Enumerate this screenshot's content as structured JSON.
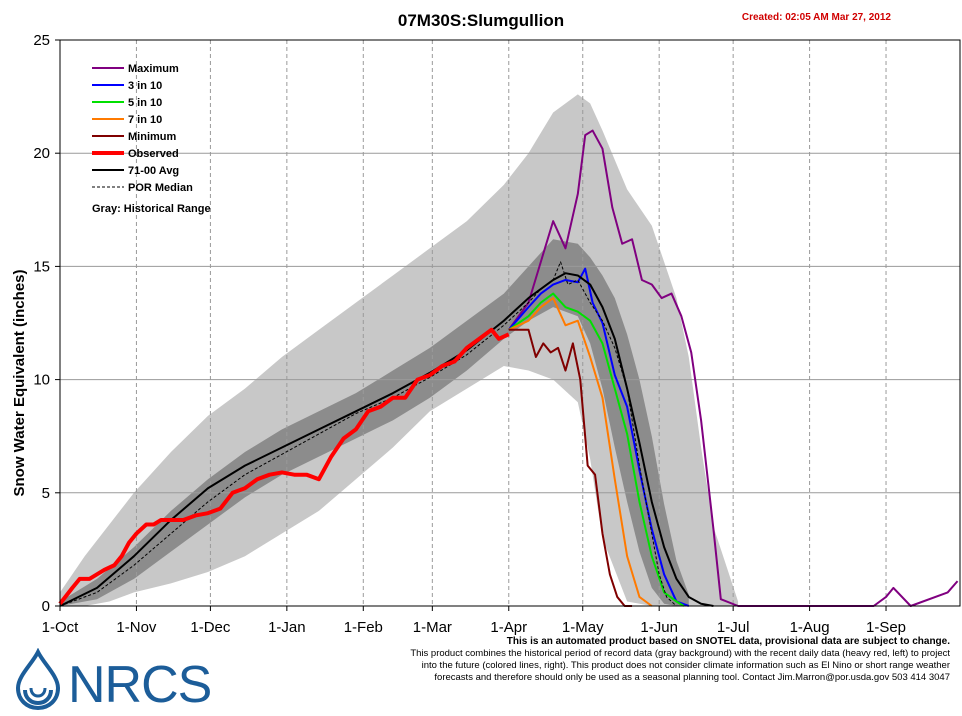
{
  "header": {
    "created": "Created: 02:05 AM Mar 27, 2012"
  },
  "logo": {
    "text": "NRCS",
    "color": "#1c5d99"
  },
  "disclaimer": {
    "headline": "This is an automated product based on SNOTEL data, provisional data are subject to change.",
    "line1": "This product combines the historical period of record data (gray background) with the recent daily data (heavy red, left) to project",
    "line2": "into the future (colored lines, right). This product does not consider climate information such as El Nino or short range weather",
    "line3": "forecasts and therefore should only be used as a seasonal planning tool. Contact Jim.Marron@por.usda.gov 503 414 3047"
  },
  "chart_data": {
    "type": "line",
    "title": "07M30S:Slumgullion",
    "xlabel": "",
    "ylabel": "Snow Water Equivalent (inches)",
    "ylim": [
      0,
      25
    ],
    "yticks": [
      0,
      5,
      10,
      15,
      20,
      25
    ],
    "x_unit": "days since 1-Oct",
    "xlim": [
      0,
      365
    ],
    "xticks": [
      {
        "label": "1-Oct",
        "day": 0
      },
      {
        "label": "1-Nov",
        "day": 31
      },
      {
        "label": "1-Dec",
        "day": 61
      },
      {
        "label": "1-Jan",
        "day": 92
      },
      {
        "label": "1-Feb",
        "day": 123
      },
      {
        "label": "1-Mar",
        "day": 151
      },
      {
        "label": "1-Apr",
        "day": 182
      },
      {
        "label": "1-May",
        "day": 212
      },
      {
        "label": "1-Jun",
        "day": 243
      },
      {
        "label": "1-Jul",
        "day": 273
      },
      {
        "label": "1-Aug",
        "day": 304
      },
      {
        "label": "1-Sep",
        "day": 335
      }
    ],
    "grid": true,
    "legend_position": "top-left",
    "legend_note": "Gray: Historical Range",
    "bands": [
      {
        "name": "Historical Range",
        "color": "#c8c8c8",
        "x": [
          0,
          10,
          20,
          30,
          45,
          60,
          75,
          90,
          105,
          120,
          135,
          150,
          165,
          180,
          190,
          200,
          210,
          215,
          220,
          230,
          240,
          250,
          255,
          260,
          265,
          275
        ],
        "upper": [
          0.6,
          2.2,
          3.6,
          5.0,
          6.8,
          8.4,
          9.6,
          11.0,
          12.2,
          13.4,
          14.6,
          15.8,
          17.0,
          18.6,
          20.0,
          21.8,
          22.6,
          22.2,
          21.0,
          18.4,
          16.8,
          13.6,
          11.0,
          7.0,
          3.5,
          0.2
        ],
        "lower": [
          0,
          0,
          0.2,
          0.6,
          1.0,
          1.5,
          2.2,
          3.2,
          4.2,
          5.6,
          7.0,
          8.6,
          9.6,
          10.6,
          10.4,
          10.0,
          9.0,
          6.5,
          3.0,
          0.2,
          0,
          0,
          0,
          0,
          0,
          0
        ]
      },
      {
        "name": "Middle Range",
        "color": "#8c8c8c",
        "x": [
          0,
          15,
          30,
          45,
          60,
          75,
          90,
          105,
          120,
          135,
          150,
          165,
          180,
          190,
          200,
          210,
          215,
          220,
          225,
          230,
          235,
          240,
          245,
          250,
          255
        ],
        "upper": [
          0.2,
          1.2,
          2.6,
          4.2,
          5.6,
          6.8,
          7.8,
          8.6,
          9.4,
          10.4,
          11.4,
          12.6,
          13.8,
          15.0,
          16.2,
          16.0,
          15.4,
          14.6,
          13.6,
          12.0,
          10.0,
          7.5,
          4.5,
          2.0,
          0.5
        ],
        "lower": [
          0,
          0.3,
          1.2,
          2.4,
          3.6,
          4.8,
          5.8,
          6.6,
          7.4,
          8.2,
          9.2,
          10.4,
          11.8,
          12.6,
          13.2,
          12.8,
          11.6,
          9.6,
          7.0,
          4.6,
          2.4,
          0.8,
          0.1,
          0,
          0
        ]
      }
    ],
    "series": [
      {
        "name": "Maximum",
        "color": "#800080",
        "width": 2,
        "x": [
          182,
          190,
          195,
          200,
          205,
          210,
          213,
          216,
          220,
          224,
          228,
          232,
          236,
          240,
          244,
          248,
          252,
          256,
          260,
          265,
          268,
          275,
          300,
          330,
          335,
          338,
          345,
          360,
          364
        ],
        "y": [
          12.2,
          13.4,
          15.2,
          17.0,
          15.8,
          18.2,
          20.8,
          21.0,
          20.2,
          17.6,
          16.0,
          16.2,
          14.4,
          14.2,
          13.6,
          13.8,
          12.8,
          11.2,
          8.2,
          3.4,
          0.3,
          0,
          0,
          0,
          0.4,
          0.8,
          0,
          0.6,
          1.1
        ]
      },
      {
        "name": "3 in 10",
        "color": "#0000ff",
        "width": 2,
        "x": [
          182,
          190,
          195,
          200,
          205,
          210,
          213,
          216,
          220,
          225,
          230,
          235,
          240,
          245,
          250,
          255
        ],
        "y": [
          12.2,
          13.2,
          13.8,
          14.2,
          14.4,
          14.3,
          14.9,
          13.4,
          12.5,
          10.2,
          8.8,
          6.0,
          3.4,
          1.4,
          0.2,
          0
        ]
      },
      {
        "name": "5 in 10",
        "color": "#00e000",
        "width": 2,
        "x": [
          182,
          190,
          195,
          200,
          205,
          210,
          215,
          220,
          225,
          230,
          235,
          240,
          245,
          250,
          253
        ],
        "y": [
          12.2,
          12.8,
          13.4,
          13.8,
          13.2,
          13.0,
          12.6,
          11.6,
          9.6,
          7.6,
          4.6,
          2.2,
          0.6,
          0.2,
          0
        ]
      },
      {
        "name": "7 in 10",
        "color": "#ff7a00",
        "width": 2,
        "x": [
          182,
          190,
          195,
          200,
          205,
          210,
          215,
          220,
          225,
          230,
          235,
          240
        ],
        "y": [
          12.2,
          12.6,
          13.2,
          13.6,
          12.4,
          12.6,
          11.0,
          9.2,
          5.6,
          2.2,
          0.4,
          0
        ]
      },
      {
        "name": "Minimum",
        "color": "#800000",
        "width": 2,
        "x": [
          182,
          186,
          190,
          193,
          196,
          199,
          202,
          205,
          208,
          211,
          214,
          217,
          220,
          223,
          226,
          229,
          232
        ],
        "y": [
          12.2,
          12.2,
          12.2,
          11.0,
          11.6,
          11.2,
          11.4,
          10.4,
          11.6,
          10.0,
          6.2,
          5.8,
          3.2,
          1.4,
          0.4,
          0,
          0
        ]
      },
      {
        "name": "Observed",
        "color": "#ff0000",
        "width": 4,
        "x": [
          0,
          5,
          8,
          12,
          18,
          22,
          25,
          28,
          31,
          35,
          38,
          41,
          45,
          50,
          55,
          60,
          65,
          70,
          75,
          80,
          85,
          90,
          95,
          100,
          105,
          110,
          115,
          120,
          125,
          130,
          135,
          140,
          145,
          150,
          155,
          160,
          165,
          170,
          175,
          178,
          182
        ],
        "y": [
          0.1,
          0.8,
          1.2,
          1.2,
          1.6,
          1.8,
          2.2,
          2.8,
          3.2,
          3.6,
          3.6,
          3.8,
          3.8,
          3.8,
          4.0,
          4.1,
          4.3,
          5.0,
          5.2,
          5.6,
          5.8,
          5.9,
          5.8,
          5.8,
          5.6,
          6.6,
          7.4,
          7.8,
          8.6,
          8.8,
          9.2,
          9.2,
          10.0,
          10.2,
          10.6,
          10.8,
          11.4,
          11.8,
          12.2,
          11.8,
          12.0
        ]
      },
      {
        "name": "71-00 Avg",
        "color": "#000000",
        "width": 2,
        "x": [
          0,
          15,
          30,
          45,
          60,
          75,
          90,
          105,
          120,
          135,
          150,
          165,
          180,
          190,
          200,
          205,
          210,
          215,
          220,
          225,
          230,
          235,
          240,
          245,
          250,
          255,
          260,
          265
        ],
        "y": [
          0,
          0.8,
          2.2,
          3.8,
          5.2,
          6.2,
          7.0,
          7.8,
          8.6,
          9.4,
          10.3,
          11.3,
          12.6,
          13.6,
          14.4,
          14.7,
          14.6,
          14.2,
          13.2,
          11.8,
          9.6,
          7.2,
          4.6,
          2.6,
          1.2,
          0.4,
          0.1,
          0
        ]
      },
      {
        "name": "POR Median",
        "color": "#000000",
        "width": 1,
        "dash": "3,2",
        "x": [
          0,
          15,
          30,
          45,
          60,
          75,
          90,
          105,
          120,
          135,
          150,
          165,
          180,
          190,
          195,
          200,
          203,
          206,
          210,
          215,
          220,
          225,
          230,
          235,
          240,
          243,
          246,
          250
        ],
        "y": [
          0,
          0.6,
          1.8,
          3.2,
          4.6,
          5.8,
          6.7,
          7.6,
          8.5,
          9.2,
          10.1,
          11.1,
          12.4,
          13.4,
          14.0,
          14.4,
          15.2,
          14.2,
          14.4,
          13.4,
          12.6,
          11.4,
          9.6,
          6.2,
          3.2,
          1.4,
          0.4,
          0
        ]
      }
    ]
  }
}
